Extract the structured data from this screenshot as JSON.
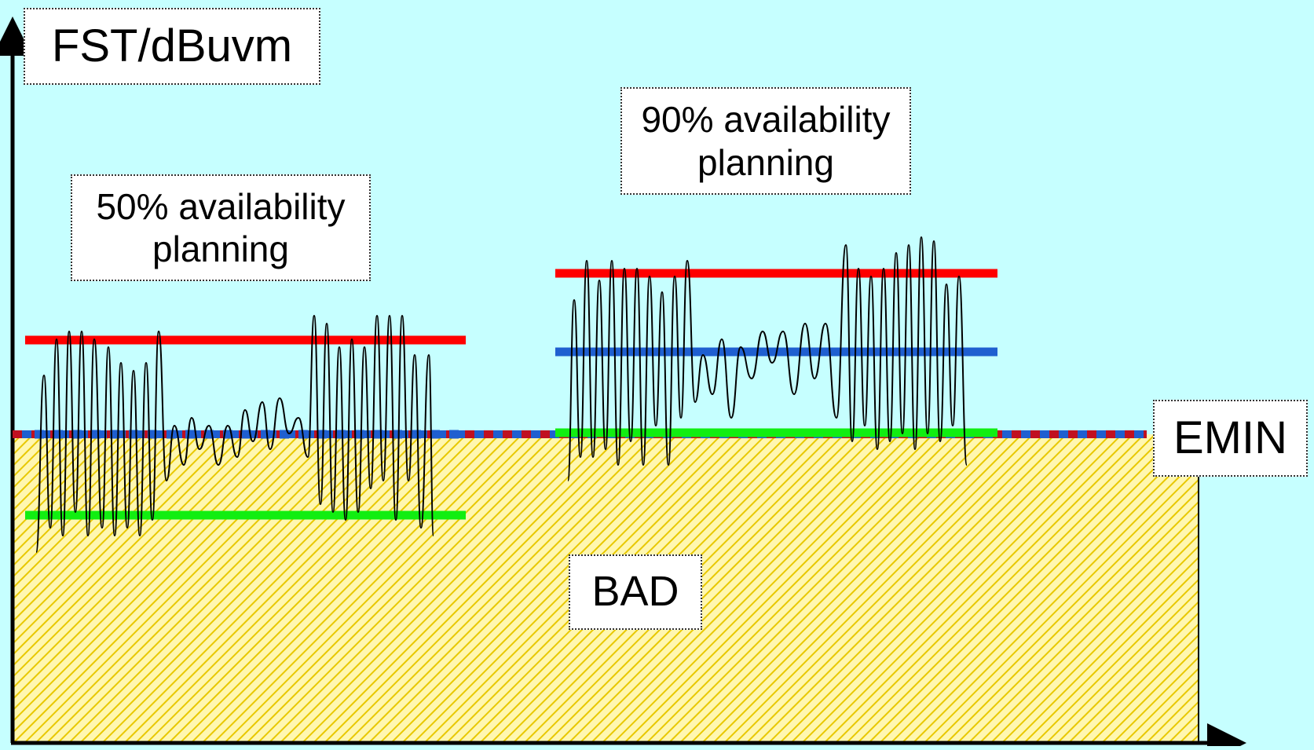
{
  "diagram": {
    "y_axis_label": "FST/dBuvm",
    "emin_label": "EMIN",
    "bad_label": "BAD",
    "panel_50": {
      "caption": "50% availability\nplanning"
    },
    "panel_90": {
      "caption": "90% availability\nplanning"
    }
  },
  "colors": {
    "background": "#c6ffff",
    "bad_region_fill": "#fff7b0",
    "bad_region_hatch": "#e8c800",
    "upper_line": "#ff0000",
    "median_line": "#1f5fd0",
    "lower_line": "#11ee11",
    "emin_dash_red": "#c01020",
    "emin_dash_blue": "#1f5fd0",
    "signal_trace": "#000000",
    "axis": "#000000"
  }
}
